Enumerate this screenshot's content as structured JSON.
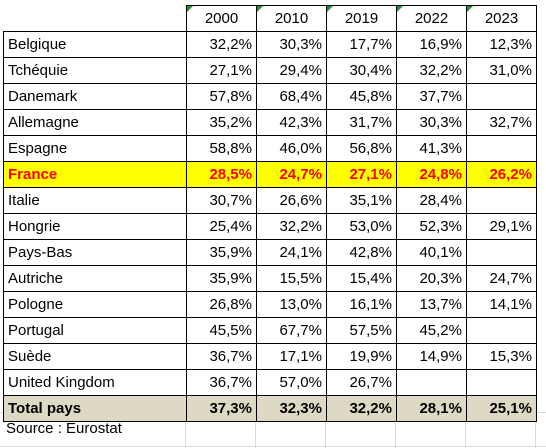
{
  "table": {
    "years": [
      "2000",
      "2010",
      "2019",
      "2022",
      "2023"
    ],
    "rows": [
      {
        "country": "Belgique",
        "values": [
          "32,2%",
          "30,3%",
          "17,7%",
          "16,9%",
          "12,3%"
        ]
      },
      {
        "country": "Tchéquie",
        "values": [
          "27,1%",
          "29,4%",
          "30,4%",
          "32,2%",
          "31,0%"
        ]
      },
      {
        "country": "Danemark",
        "values": [
          "57,8%",
          "68,4%",
          "45,8%",
          "37,7%",
          ""
        ]
      },
      {
        "country": "Allemagne",
        "values": [
          "35,2%",
          "42,3%",
          "31,7%",
          "30,3%",
          "32,7%"
        ]
      },
      {
        "country": "Espagne",
        "values": [
          "58,8%",
          "46,0%",
          "56,8%",
          "41,3%",
          ""
        ]
      },
      {
        "country": "France",
        "values": [
          "28,5%",
          "24,7%",
          "27,1%",
          "24,8%",
          "26,2%"
        ],
        "highlight": true
      },
      {
        "country": "Italie",
        "values": [
          "30,7%",
          "26,6%",
          "35,1%",
          "28,4%",
          ""
        ]
      },
      {
        "country": "Hongrie",
        "values": [
          "25,4%",
          "32,2%",
          "53,0%",
          "52,3%",
          "29,1%"
        ]
      },
      {
        "country": "Pays-Bas",
        "values": [
          "35,9%",
          "24,1%",
          "42,8%",
          "40,1%",
          ""
        ]
      },
      {
        "country": "Autriche",
        "values": [
          "35,9%",
          "15,5%",
          "15,4%",
          "20,3%",
          "24,7%"
        ]
      },
      {
        "country": "Pologne",
        "values": [
          "26,8%",
          "13,0%",
          "16,1%",
          "13,7%",
          "14,1%"
        ]
      },
      {
        "country": "Portugal",
        "values": [
          "45,5%",
          "67,7%",
          "57,5%",
          "45,2%",
          ""
        ]
      },
      {
        "country": "Suède",
        "values": [
          "36,7%",
          "17,1%",
          "19,9%",
          "14,9%",
          "15,3%"
        ]
      },
      {
        "country": "United Kingdom",
        "values": [
          "36,7%",
          "57,0%",
          "26,7%",
          "",
          ""
        ]
      }
    ],
    "total": {
      "country": "Total pays",
      "values": [
        "37,3%",
        "32,3%",
        "32,2%",
        "28,1%",
        "25,1%"
      ]
    }
  },
  "source": "Source : Eurostat",
  "colors": {
    "highlight_bg": "#ffff00",
    "highlight_text": "#ff0000",
    "total_bg": "#ddd9c4",
    "cell_marker": "#1f8f3a"
  }
}
